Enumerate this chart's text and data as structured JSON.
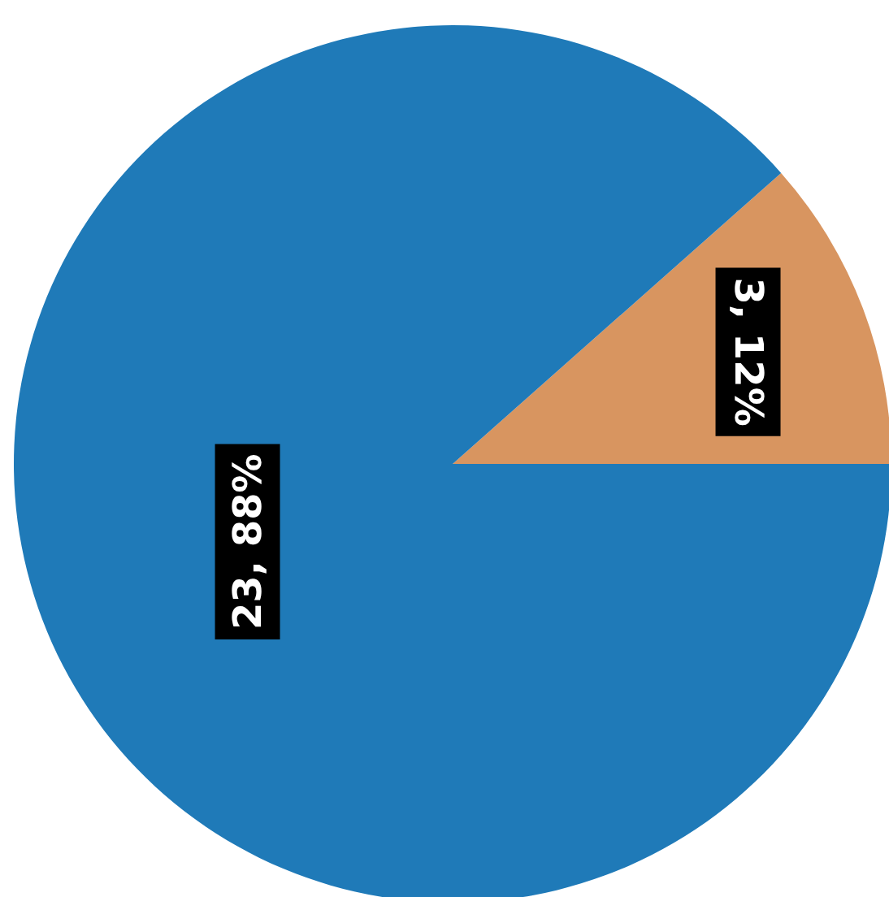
{
  "chart_data": {
    "type": "pie",
    "categories": [
      null,
      null
    ],
    "values": [
      3,
      23
    ],
    "colors": [
      "#d89560",
      "#1f7ab8"
    ],
    "value_labels": [
      "3, 12%",
      "23, 88%"
    ]
  }
}
